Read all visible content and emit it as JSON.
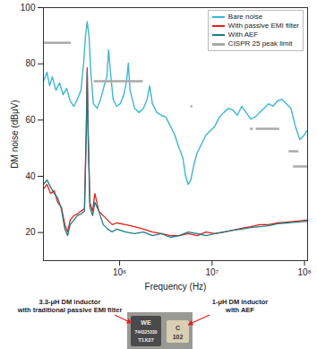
{
  "chart_data": {
    "type": "line",
    "x_label": "Frequency (Hz)",
    "y_label": "DM noise (dBμV)",
    "log": "x",
    "grid": false,
    "legend": "upper right",
    "xlim": [
      150000,
      108000000
    ],
    "xticks": [
      {
        "value": 1000000,
        "label": "10⁶"
      },
      {
        "value": 10000000,
        "label": "10⁷"
      },
      {
        "value": 100000000,
        "label": "10⁸"
      }
    ],
    "ylim": [
      10,
      100
    ],
    "yticks": [
      20,
      40,
      60,
      80,
      100
    ],
    "series": [
      {
        "name": "Bare noise",
        "color": "#3fb6d3",
        "x": [
          150000,
          164000,
          175000,
          187000,
          205000,
          224000,
          245000,
          267000,
          292000,
          320000,
          349000,
          382000,
          408000,
          427000,
          446000,
          467000,
          488000,
          521000,
          570000,
          623000,
          681000,
          728000,
          761000,
          796000,
          851000,
          930000,
          1016000,
          1111000,
          1188000,
          1242000,
          1298000,
          1451000,
          1622000,
          1813000,
          1982000,
          2118000,
          2264000,
          2531000,
          2829000,
          3162000,
          3533000,
          3949000,
          4414000,
          4824000,
          5157000,
          5511000,
          5892000,
          6300000,
          6885000,
          7695000,
          8603000,
          9617000,
          10750000,
          12010000,
          13420000,
          15000000,
          16770000,
          18740000,
          20940000,
          23410000,
          26160000,
          29240000,
          32680000,
          36520000,
          40820000,
          45620000,
          51000000,
          56990000,
          63690000,
          71190000,
          79560000,
          88930000,
          99390000,
          106200000
        ],
        "values": [
          73.8,
          77.0,
          72.2,
          75.4,
          70.6,
          73.2,
          69.0,
          71.3,
          66.8,
          64.9,
          67.4,
          70.6,
          80.2,
          89.8,
          95.0,
          89.8,
          77.0,
          65.8,
          64.2,
          67.4,
          72.2,
          75.4,
          85.0,
          77.0,
          67.4,
          64.9,
          65.8,
          69.0,
          73.8,
          80.2,
          70.6,
          64.2,
          62.7,
          64.2,
          67.4,
          72.2,
          65.8,
          62.7,
          61.7,
          61.1,
          57.9,
          54.7,
          49.9,
          46.7,
          40.3,
          37.1,
          38.7,
          43.5,
          48.3,
          51.5,
          54.7,
          56.3,
          57.9,
          61.1,
          62.7,
          64.2,
          63.6,
          61.7,
          64.9,
          62.7,
          60.4,
          61.1,
          62.7,
          64.2,
          65.8,
          64.9,
          66.8,
          67.4,
          65.8,
          64.2,
          57.9,
          53.1,
          54.7,
          56.3
        ]
      },
      {
        "name": "With passive EMI filter",
        "color": "#e0201b",
        "x": [
          150000,
          164000,
          179000,
          196000,
          214000,
          234000,
          256000,
          274000,
          292000,
          320000,
          349000,
          382000,
          417000,
          436000,
          446000,
          456000,
          477000,
          510000,
          540000,
          596000,
          666000,
          744000,
          832000,
          930000,
          1161000,
          1451000,
          1813000,
          2264000,
          2829000,
          3533000,
          4414000,
          5511000,
          6885000,
          8603000,
          10750000,
          13420000,
          16770000,
          20940000,
          26160000,
          32680000,
          40820000,
          51000000,
          63690000,
          79560000,
          106200000
        ],
        "values": [
          35.5,
          37.1,
          33.9,
          34.9,
          30.7,
          29.1,
          22.8,
          20.2,
          24.4,
          26.0,
          26.6,
          27.6,
          28.5,
          57.9,
          78.6,
          57.9,
          30.7,
          27.6,
          33.9,
          27.6,
          26.0,
          24.4,
          22.8,
          23.4,
          22.8,
          22.1,
          21.2,
          20.2,
          19.6,
          18.9,
          18.9,
          19.6,
          18.9,
          20.2,
          19.6,
          20.2,
          20.8,
          21.5,
          22.1,
          22.8,
          22.8,
          23.4,
          23.7,
          24.0,
          24.4
        ]
      },
      {
        "name": "With AEF",
        "color": "#1f7b84",
        "x": [
          150000,
          164000,
          179000,
          196000,
          214000,
          234000,
          256000,
          274000,
          292000,
          320000,
          349000,
          382000,
          417000,
          436000,
          446000,
          456000,
          477000,
          510000,
          540000,
          596000,
          666000,
          744000,
          832000,
          930000,
          1161000,
          1451000,
          1813000,
          2264000,
          2829000,
          3533000,
          4414000,
          5511000,
          6885000,
          8603000,
          10750000,
          13420000,
          16770000,
          20940000,
          26160000,
          32680000,
          40820000,
          51000000,
          63690000,
          79560000,
          106200000
        ],
        "values": [
          37.1,
          38.7,
          36.2,
          33.9,
          32.3,
          28.5,
          21.2,
          18.9,
          22.8,
          24.4,
          26.0,
          26.6,
          27.6,
          54.7,
          77.0,
          54.7,
          29.1,
          26.0,
          30.7,
          27.6,
          22.8,
          21.2,
          20.2,
          21.2,
          20.2,
          19.6,
          20.2,
          18.9,
          19.6,
          18.3,
          18.9,
          20.2,
          19.6,
          18.9,
          19.6,
          20.2,
          20.8,
          21.2,
          21.8,
          22.1,
          22.4,
          23.1,
          23.4,
          23.7,
          24.0
        ]
      },
      {
        "name": "CISPR 25 peak limit",
        "color": "#aaaaaa",
        "type": "segment",
        "x": [
          [
            150000,
            300000
          ],
          [
            530000,
            1800000
          ],
          [
            5900000,
            6200000
          ],
          [
            26000000,
            28000000
          ],
          [
            30000000,
            54000000
          ],
          [
            68000000,
            87000000
          ],
          [
            76000000,
            108000000
          ]
        ],
        "values": [
          87.5,
          73.8,
          64.9,
          56.9,
          56.9,
          48.9,
          43.5
        ]
      }
    ],
    "annotations": [
      {
        "text": [
          "3.3-μH DM inductor",
          "with traditional passive EMI filter"
        ],
        "markings": [
          "WE",
          "744325330",
          "T1X27"
        ]
      },
      {
        "text": [
          "1-μH DM inductor",
          "with AEF"
        ],
        "markings": [
          "C",
          "102"
        ]
      }
    ]
  }
}
